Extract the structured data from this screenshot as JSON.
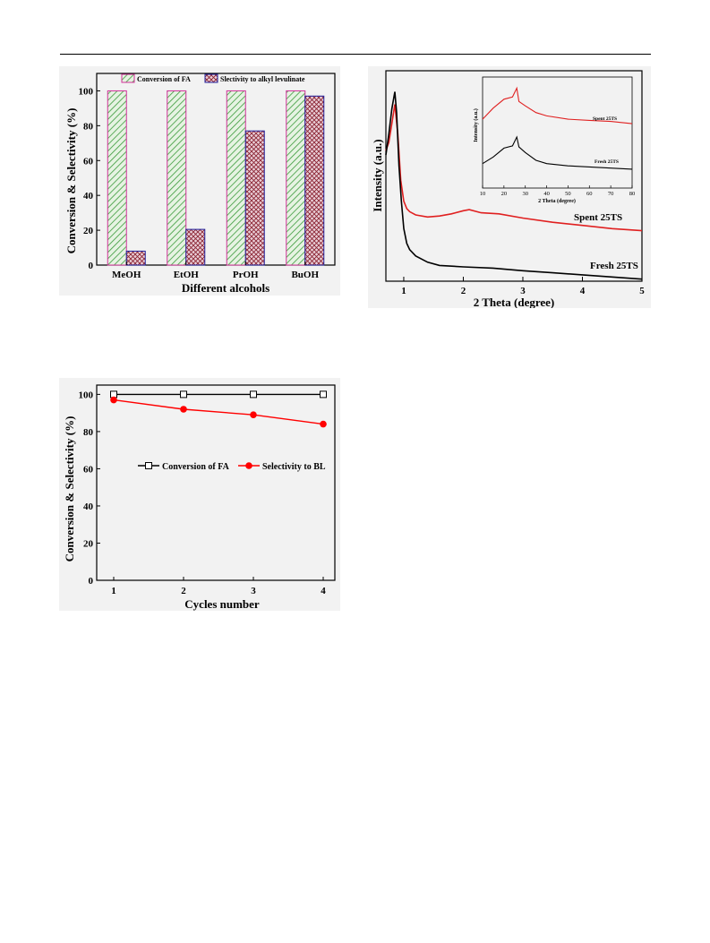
{
  "chart_data": [
    {
      "type": "bar",
      "categories": [
        "MeOH",
        "EtOH",
        "PrOH",
        "BuOH"
      ],
      "series": [
        {
          "name": "Conversion of FA",
          "values": [
            100,
            100,
            100,
            100
          ],
          "color": "#3a9a3a",
          "fill": "#e6f3e2"
        },
        {
          "name": "Slectivity to alkyl levulinate",
          "values": [
            8,
            20.5,
            77,
            97
          ],
          "color": "#8a2232",
          "fill": "#ead0d8"
        }
      ],
      "xlabel": "Different alcohols",
      "ylabel": "Conversion & Selectivity (%)",
      "ylim": [
        0,
        110
      ],
      "yticks": [
        0,
        20,
        40,
        60,
        80,
        100
      ],
      "legend": "top",
      "bar_border": "#d2329b",
      "legend_border": "#1f1f9b"
    },
    {
      "type": "line",
      "xlabel": "2 Theta (degree)",
      "ylabel": "Intensity (a.u.)",
      "xlim": [
        0.7,
        5
      ],
      "xticks": [
        1,
        2,
        3,
        4,
        5
      ],
      "series": [
        {
          "name": "Spent 25TS",
          "color": "#e02020",
          "x": [
            0.7,
            0.75,
            0.8,
            0.85,
            0.9,
            0.95,
            1.0,
            1.05,
            1.1,
            1.2,
            1.4,
            1.6,
            1.8,
            2.0,
            2.1,
            2.3,
            2.6,
            3.0,
            3.5,
            4.0,
            4.5,
            5.0
          ],
          "y": [
            0.62,
            0.66,
            0.75,
            0.84,
            0.7,
            0.48,
            0.38,
            0.345,
            0.33,
            0.315,
            0.305,
            0.31,
            0.32,
            0.335,
            0.34,
            0.325,
            0.32,
            0.3,
            0.28,
            0.265,
            0.25,
            0.24
          ]
        },
        {
          "name": "Fresh 25TS",
          "color": "#000000",
          "x": [
            0.7,
            0.75,
            0.8,
            0.85,
            0.88,
            0.92,
            0.96,
            1.0,
            1.05,
            1.1,
            1.2,
            1.4,
            1.6,
            2.0,
            2.5,
            3.0,
            3.5,
            4.0,
            4.5,
            5.0
          ],
          "y": [
            0.6,
            0.7,
            0.82,
            0.9,
            0.8,
            0.55,
            0.38,
            0.25,
            0.18,
            0.15,
            0.12,
            0.09,
            0.075,
            0.068,
            0.062,
            0.05,
            0.04,
            0.03,
            0.02,
            0.01
          ]
        }
      ],
      "inset": {
        "xlabel": "2 Theta (degree)",
        "ylabel": "Intensity (a.u.)",
        "xlim": [
          10,
          80
        ],
        "xticks": [
          10,
          20,
          30,
          40,
          50,
          60,
          70,
          80
        ],
        "series": [
          {
            "name": "Spent 25TS",
            "color": "#e02020",
            "x": [
              10,
              15,
              20,
              24,
              26,
              27,
              30,
              35,
              40,
              50,
              60,
              70,
              80
            ],
            "y": [
              0.62,
              0.72,
              0.8,
              0.82,
              0.9,
              0.78,
              0.74,
              0.68,
              0.65,
              0.62,
              0.61,
              0.6,
              0.58
            ]
          },
          {
            "name": "Fresh 25TS",
            "color": "#000000",
            "x": [
              10,
              15,
              20,
              24,
              26,
              27,
              30,
              35,
              40,
              50,
              60,
              70,
              80
            ],
            "y": [
              0.22,
              0.28,
              0.36,
              0.38,
              0.46,
              0.37,
              0.32,
              0.25,
              0.22,
              0.2,
              0.19,
              0.18,
              0.17
            ]
          }
        ]
      }
    },
    {
      "type": "line",
      "categories": [
        1,
        2,
        3,
        4
      ],
      "series": [
        {
          "name": "Conversion of FA",
          "values": [
            100,
            100,
            100,
            100
          ],
          "color": "#000000",
          "marker": "open-square"
        },
        {
          "name": "Selectivity to BL",
          "values": [
            97,
            92,
            89,
            84
          ],
          "color": "#ff0000",
          "marker": "filled-circle"
        }
      ],
      "xlabel": "Cycles number",
      "ylabel": "Conversion & Selectivity (%)",
      "ylim": [
        0,
        105
      ],
      "yticks": [
        0,
        20,
        40,
        60,
        80,
        100
      ],
      "legend": "center"
    }
  ]
}
